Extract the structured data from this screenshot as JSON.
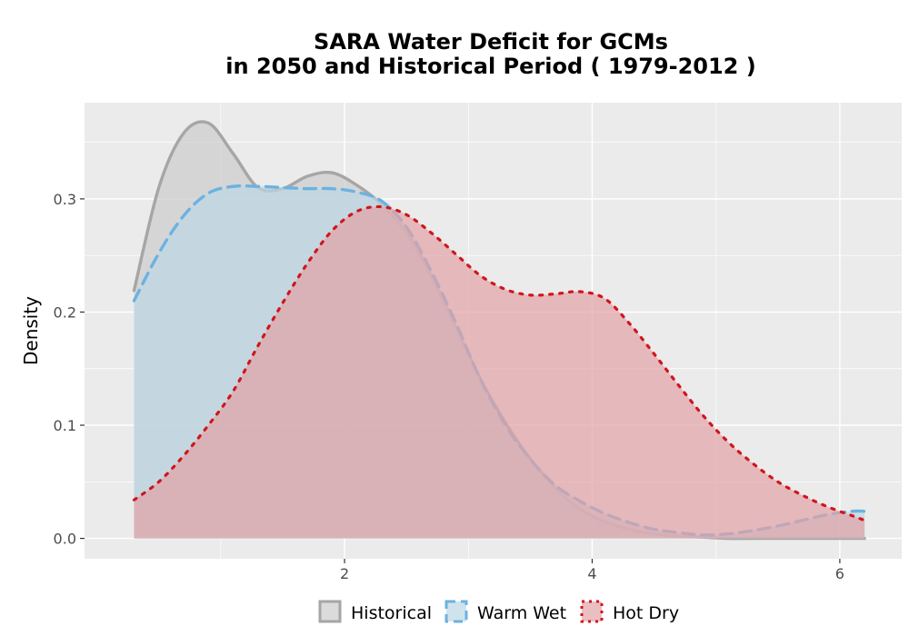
{
  "chart_data": {
    "type": "area",
    "title": "SARA  Water Deficit for GCMs",
    "subtitle": "in 2050 and Historical Period ( 1979-2012 )",
    "xlabel": "",
    "ylabel": "Density",
    "xlim": [
      -0.1,
      6.5
    ],
    "ylim": [
      -0.018,
      0.385
    ],
    "x_ticks": [
      2,
      4,
      6
    ],
    "x_tick_labels": [
      "2",
      "4",
      "6"
    ],
    "y_ticks": [
      0.0,
      0.1,
      0.2,
      0.3
    ],
    "y_tick_labels": [
      "0.0",
      "0.1",
      "0.2",
      "0.3"
    ],
    "grid": true,
    "legend_position": "bottom",
    "series": [
      {
        "name": "Historical",
        "color": "#a6a6a6",
        "fill": "#cccccc",
        "line_style": "solid",
        "x": [
          0.3,
          0.5,
          0.7,
          0.9,
          1.1,
          1.3,
          1.5,
          1.7,
          1.9,
          2.1,
          2.3,
          2.5,
          2.7,
          2.9,
          3.1,
          3.3,
          3.5,
          3.7,
          3.9,
          4.1,
          4.3,
          4.5,
          4.7,
          4.9,
          5.1,
          5.3,
          5.5,
          5.7,
          5.9,
          6.1,
          6.2
        ],
        "y": [
          0.219,
          0.31,
          0.358,
          0.367,
          0.34,
          0.31,
          0.309,
          0.32,
          0.323,
          0.312,
          0.295,
          0.27,
          0.232,
          0.186,
          0.14,
          0.102,
          0.07,
          0.045,
          0.026,
          0.015,
          0.008,
          0.004,
          0.002,
          0.001,
          0.0,
          0.0,
          0.0,
          0.0,
          0.0,
          0.0,
          0.0
        ]
      },
      {
        "name": "Warm Wet",
        "color": "#6cb2e0",
        "fill": "#bcd7e6",
        "line_style": "dashed",
        "x": [
          0.3,
          0.5,
          0.7,
          0.9,
          1.1,
          1.3,
          1.5,
          1.7,
          1.9,
          2.1,
          2.3,
          2.5,
          2.7,
          2.9,
          3.1,
          3.3,
          3.5,
          3.7,
          3.9,
          4.1,
          4.3,
          4.5,
          4.7,
          4.9,
          5.1,
          5.3,
          5.5,
          5.7,
          5.9,
          6.1,
          6.2
        ],
        "y": [
          0.21,
          0.252,
          0.285,
          0.305,
          0.311,
          0.311,
          0.31,
          0.309,
          0.309,
          0.306,
          0.298,
          0.275,
          0.236,
          0.19,
          0.14,
          0.1,
          0.07,
          0.047,
          0.033,
          0.022,
          0.014,
          0.008,
          0.005,
          0.003,
          0.004,
          0.007,
          0.011,
          0.016,
          0.021,
          0.024,
          0.024
        ]
      },
      {
        "name": "Hot Dry",
        "color": "#d0161c",
        "fill": "#e3a3a6",
        "line_style": "dotted",
        "x": [
          0.3,
          0.5,
          0.7,
          0.9,
          1.1,
          1.3,
          1.5,
          1.7,
          1.9,
          2.1,
          2.3,
          2.5,
          2.7,
          2.9,
          3.1,
          3.3,
          3.5,
          3.7,
          3.9,
          4.1,
          4.3,
          4.5,
          4.7,
          4.9,
          5.1,
          5.3,
          5.5,
          5.7,
          5.9,
          6.1,
          6.2
        ],
        "y": [
          0.034,
          0.05,
          0.073,
          0.1,
          0.13,
          0.17,
          0.208,
          0.243,
          0.272,
          0.289,
          0.293,
          0.286,
          0.27,
          0.251,
          0.232,
          0.22,
          0.215,
          0.216,
          0.218,
          0.212,
          0.19,
          0.163,
          0.135,
          0.108,
          0.085,
          0.066,
          0.05,
          0.038,
          0.028,
          0.02,
          0.016
        ]
      }
    ]
  }
}
